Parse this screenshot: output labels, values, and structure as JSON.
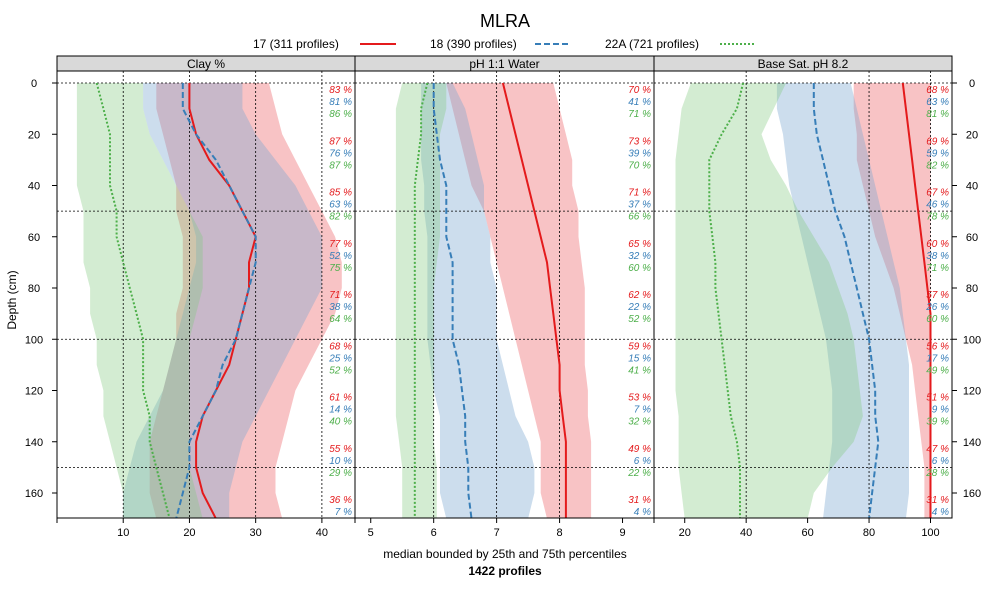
{
  "title": "MLRA",
  "xlabel": "median bounded by 25th and 75th percentiles",
  "subtitle": "1422 profiles",
  "ylabel": "Depth (cm)",
  "legend": [
    {
      "label": "17 (311 profiles)",
      "color": "#e41a1c",
      "dash": "solid"
    },
    {
      "label": "18 (390 profiles)",
      "color": "#377eb8",
      "dash": "dashed"
    },
    {
      "label": "22A (721 profiles)",
      "color": "#4daf4a",
      "dash": "dotted"
    }
  ],
  "chart_data": {
    "type": "line",
    "y_axis": {
      "label": "Depth (cm)",
      "range": [
        0,
        170
      ],
      "ticks": [
        0,
        20,
        40,
        60,
        80,
        100,
        120,
        140,
        160
      ],
      "reversed": true
    },
    "depth_labels": [
      0,
      20,
      40,
      60,
      80,
      100,
      120,
      140,
      160
    ],
    "h_reference_lines": [
      0,
      50,
      100,
      150
    ],
    "panels": [
      {
        "name": "Clay %",
        "xlim": [
          0,
          45
        ],
        "xticks": [
          10,
          20,
          30,
          40
        ],
        "x_ref_lines": [
          10,
          20,
          30,
          40
        ],
        "depth": [
          0,
          10,
          20,
          30,
          40,
          50,
          60,
          70,
          80,
          90,
          100,
          110,
          120,
          130,
          140,
          150,
          160,
          170
        ],
        "series": [
          {
            "name": "17",
            "median": [
              20,
              20,
              21,
              23,
              26,
              28,
              30,
              29,
              29,
              28,
              27,
              26,
              24,
              22,
              21,
              21,
              22,
              24
            ],
            "p25": [
              15,
              15,
              16,
              17,
              18,
              18,
              19,
              19,
              19,
              18,
              18,
              17,
              16,
              15,
              14,
              14,
              14,
              15
            ],
            "p75": [
              32,
              33,
              34,
              36,
              38,
              40,
              42,
              43,
              43,
              42,
              40,
              38,
              36,
              35,
              34,
              33,
              33,
              34
            ]
          },
          {
            "name": "18",
            "median": [
              19,
              19,
              21,
              24,
              26,
              28,
              30,
              30,
              29,
              28,
              27,
              25,
              24,
              22,
              20,
              20,
              19,
              18
            ],
            "p25": [
              13,
              13,
              14,
              16,
              18,
              20,
              21,
              21,
              20,
              19,
              18,
              17,
              16,
              14,
              12,
              11,
              10,
              10
            ],
            "p75": [
              28,
              28,
              30,
              33,
              36,
              38,
              40,
              40,
              40,
              38,
              36,
              34,
              32,
              30,
              28,
              27,
              26,
              26
            ]
          },
          {
            "name": "22A",
            "median": [
              6,
              7,
              8,
              8,
              8,
              9,
              9,
              10,
              11,
              12,
              13,
              13,
              13,
              14,
              14,
              15,
              16,
              17
            ],
            "p25": [
              3,
              3,
              3,
              3,
              3,
              4,
              4,
              4,
              5,
              5,
              6,
              6,
              7,
              7,
              8,
              9,
              10,
              10
            ],
            "p75": [
              13,
              13,
              14,
              16,
              18,
              20,
              22,
              22,
              22,
              21,
              20,
              20,
              20,
              20,
              20,
              20,
              21,
              22
            ]
          }
        ],
        "annotations": [
          [
            "83 %",
            "81 %",
            "86 %"
          ],
          [
            "87 %",
            "76 %",
            "87 %"
          ],
          [
            "85 %",
            "63 %",
            "82 %"
          ],
          [
            "77 %",
            "52 %",
            "75 %"
          ],
          [
            "71 %",
            "38 %",
            "64 %"
          ],
          [
            "68 %",
            "25 %",
            "52 %"
          ],
          [
            "61 %",
            "14 %",
            "40 %"
          ],
          [
            "55 %",
            "10 %",
            "29 %"
          ],
          [
            "36 %",
            "7 %",
            ""
          ]
        ]
      },
      {
        "name": "pH 1:1 Water",
        "xlim": [
          4.75,
          9.5
        ],
        "xticks": [
          5,
          6,
          7,
          8,
          9
        ],
        "x_ref_lines": [
          6,
          7,
          8
        ],
        "depth": [
          0,
          10,
          20,
          30,
          40,
          50,
          60,
          70,
          80,
          90,
          100,
          110,
          120,
          130,
          140,
          150,
          160,
          170
        ],
        "series": [
          {
            "name": "17",
            "median": [
              7.1,
              7.2,
              7.3,
              7.4,
              7.5,
              7.6,
              7.7,
              7.8,
              7.85,
              7.9,
              7.95,
              8.0,
              8.0,
              8.05,
              8.1,
              8.1,
              8.1,
              8.1
            ],
            "p25": [
              6.2,
              6.3,
              6.4,
              6.5,
              6.6,
              6.8,
              6.9,
              7.0,
              7.1,
              7.2,
              7.3,
              7.4,
              7.5,
              7.6,
              7.7,
              7.7,
              7.7,
              7.8
            ],
            "p75": [
              7.9,
              8.0,
              8.1,
              8.2,
              8.2,
              8.3,
              8.3,
              8.35,
              8.4,
              8.4,
              8.4,
              8.4,
              8.45,
              8.45,
              8.5,
              8.5,
              8.5,
              8.5
            ]
          },
          {
            "name": "18",
            "median": [
              6.0,
              6.0,
              6.05,
              6.1,
              6.2,
              6.2,
              6.2,
              6.3,
              6.3,
              6.3,
              6.3,
              6.4,
              6.45,
              6.5,
              6.5,
              6.55,
              6.55,
              6.6
            ],
            "p25": [
              5.8,
              5.8,
              5.8,
              5.8,
              5.85,
              5.85,
              5.9,
              5.9,
              5.9,
              5.9,
              5.9,
              5.95,
              6.0,
              6.1,
              6.1,
              6.1,
              6.1,
              6.2
            ],
            "p75": [
              6.3,
              6.5,
              6.6,
              6.7,
              6.8,
              6.8,
              6.9,
              6.9,
              7.0,
              7.0,
              7.0,
              7.1,
              7.2,
              7.3,
              7.5,
              7.6,
              7.6,
              7.5
            ]
          },
          {
            "name": "22A",
            "median": [
              5.9,
              5.8,
              5.8,
              5.75,
              5.7,
              5.7,
              5.7,
              5.7,
              5.7,
              5.7,
              5.7,
              5.7,
              5.7,
              5.7,
              5.7,
              5.7,
              5.7,
              5.7
            ],
            "p25": [
              5.5,
              5.4,
              5.4,
              5.4,
              5.4,
              5.4,
              5.4,
              5.4,
              5.4,
              5.4,
              5.4,
              5.4,
              5.4,
              5.4,
              5.45,
              5.5,
              5.5,
              5.5
            ],
            "p75": [
              6.2,
              6.2,
              6.1,
              6.1,
              6.1,
              6.1,
              6.1,
              6.05,
              6.0,
              6.0,
              6.0,
              6.0,
              6.0,
              6.0,
              6.0,
              6.05,
              6.05,
              6.05
            ]
          }
        ],
        "annotations": [
          [
            "70 %",
            "41 %",
            "71 %"
          ],
          [
            "73 %",
            "39 %",
            "70 %"
          ],
          [
            "71 %",
            "37 %",
            "66 %"
          ],
          [
            "65 %",
            "32 %",
            "60 %"
          ],
          [
            "62 %",
            "22 %",
            "52 %"
          ],
          [
            "59 %",
            "15 %",
            "41 %"
          ],
          [
            "53 %",
            "7 %",
            "32 %"
          ],
          [
            "49 %",
            "6 %",
            "22 %"
          ],
          [
            "31 %",
            "4 %",
            ""
          ]
        ]
      },
      {
        "name": "Base Sat. pH 8.2",
        "xlim": [
          10,
          107
        ],
        "xticks": [
          20,
          40,
          60,
          80,
          100
        ],
        "x_ref_lines": [
          40,
          80,
          100
        ],
        "depth": [
          0,
          10,
          20,
          30,
          40,
          50,
          60,
          70,
          80,
          90,
          100,
          110,
          120,
          130,
          140,
          150,
          160,
          170
        ],
        "series": [
          {
            "name": "17",
            "median": [
              91,
              92,
              93,
              94,
              95,
              96,
              97,
              98,
              99,
              100,
              100,
              100,
              100,
              100,
              100,
              100,
              100,
              100
            ],
            "p25": [
              75,
              75,
              76,
              76,
              78,
              80,
              82,
              85,
              88,
              90,
              92,
              94,
              95,
              96,
              97,
              98,
              98,
              98
            ],
            "p25_note": "lower bound of red band",
            "p75": [
              100,
              100,
              100,
              100,
              100,
              100,
              100,
              100,
              100,
              100,
              100,
              100,
              100,
              100,
              100,
              100,
              100,
              100
            ]
          },
          {
            "name": "18",
            "median": [
              62,
              62,
              63,
              65,
              67,
              69,
              72,
              74,
              76,
              78,
              80,
              81,
              82,
              82,
              83,
              82,
              81,
              80
            ],
            "p25": [
              50,
              50,
              52,
              53,
              54,
              56,
              58,
              60,
              62,
              64,
              66,
              67,
              68,
              68,
              68,
              67,
              66,
              65
            ],
            "p75": [
              74,
              76,
              78,
              80,
              82,
              84,
              86,
              88,
              90,
              91,
              92,
              93,
              93,
              93,
              93,
              93,
              93,
              92
            ]
          },
          {
            "name": "22A",
            "median": [
              39,
              37,
              32,
              28,
              28,
              28,
              29,
              30,
              30,
              31,
              32,
              33,
              34,
              35,
              37,
              38,
              38,
              38
            ],
            "p25": [
              22,
              19,
              18,
              17,
              17,
              17,
              17,
              17,
              17,
              17,
              17,
              17,
              17,
              18,
              18,
              18,
              19,
              20
            ],
            "p75": [
              53,
              49,
              45,
              48,
              53,
              57,
              62,
              67,
              70,
              73,
              75,
              76,
              77,
              78,
              75,
              68,
              62,
              60
            ]
          }
        ],
        "annotations": [
          [
            "68 %",
            "63 %",
            "81 %"
          ],
          [
            "69 %",
            "59 %",
            "82 %"
          ],
          [
            "67 %",
            "46 %",
            "78 %"
          ],
          [
            "60 %",
            "38 %",
            "71 %"
          ],
          [
            "57 %",
            "26 %",
            "60 %"
          ],
          [
            "56 %",
            "17 %",
            "49 %"
          ],
          [
            "51 %",
            "9 %",
            "39 %"
          ],
          [
            "47 %",
            "6 %",
            "28 %"
          ],
          [
            "31 %",
            "4 %",
            ""
          ]
        ]
      }
    ]
  }
}
